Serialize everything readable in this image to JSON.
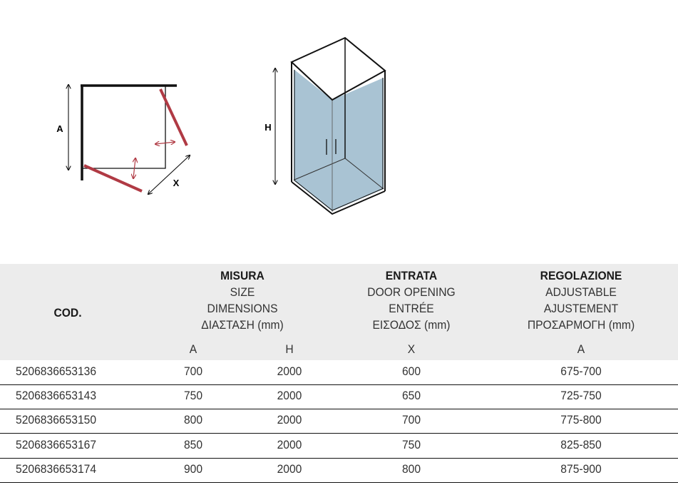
{
  "diagrams": {
    "plan_labels": {
      "a": "A",
      "x": "X"
    },
    "elevation_labels": {
      "h": "H"
    },
    "colors": {
      "glass": "#a9c3d3",
      "door": "#b03a44",
      "frame": "#111111"
    }
  },
  "table": {
    "code_header": "COD.",
    "groups": [
      {
        "lines": [
          "MISURA",
          "SIZE",
          "DIMENSIONS",
          "ΔΙΑΣΤΑΣΗ (mm)"
        ],
        "subcolumns": [
          "A",
          "H"
        ]
      },
      {
        "lines": [
          "ENTRATA",
          "DOOR OPENING",
          "ENTRÉE",
          "ΕΙΣΟΔΟΣ (mm)"
        ],
        "subcolumns": [
          "X"
        ]
      },
      {
        "lines": [
          "REGOLAZIONE",
          "ADJUSTABLE",
          "AJUSTEMENT",
          "ΠΡΟΣΑΡΜΟΓΗ (mm)"
        ],
        "subcolumns": [
          "A"
        ]
      }
    ],
    "rows": [
      {
        "code": "5206836653136",
        "a": "700",
        "h": "2000",
        "x": "600",
        "adj": "675-700"
      },
      {
        "code": "5206836653143",
        "a": "750",
        "h": "2000",
        "x": "650",
        "adj": "725-750"
      },
      {
        "code": "5206836653150",
        "a": "800",
        "h": "2000",
        "x": "700",
        "adj": "775-800"
      },
      {
        "code": "5206836653167",
        "a": "850",
        "h": "2000",
        "x": "750",
        "adj": "825-850"
      },
      {
        "code": "5206836653174",
        "a": "900",
        "h": "2000",
        "x": "800",
        "adj": "875-900"
      }
    ]
  }
}
